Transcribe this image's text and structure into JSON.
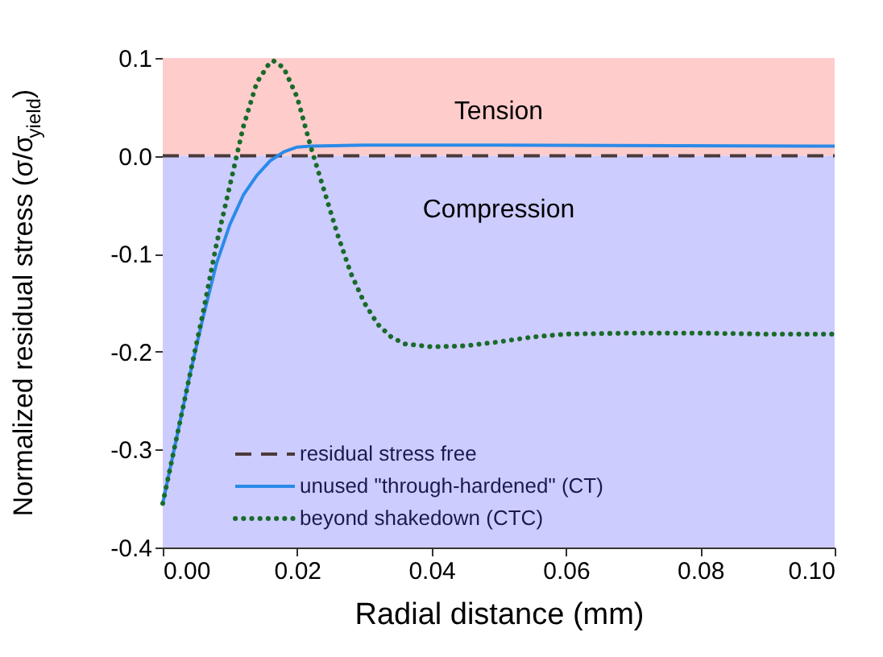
{
  "chart_data": {
    "type": "line",
    "xlabel": "Radial distance (mm)",
    "ylabel": "Normalized residual stress (σ/σ$_{yield}$)",
    "xlim": [
      0,
      0.1
    ],
    "xticks": [
      {
        "value": 0,
        "label": "0.00"
      },
      0.02,
      0.04,
      0.06,
      0.08,
      {
        "value": 0.1,
        "label": "0.10"
      }
    ],
    "ylim": [
      -0.4,
      0.1
    ],
    "yticks": [
      {
        "value": -0.4,
        "label": "-0.4"
      },
      {
        "value": -0.3,
        "label": "-0.3"
      },
      {
        "value": -0.2,
        "label": "-0.2"
      },
      {
        "value": -0.1,
        "label": "-0.1"
      },
      {
        "value": 0,
        "label": "0.0"
      },
      {
        "value": 0.1,
        "label": "0.1"
      }
    ],
    "grid": false,
    "legend": "bottom left",
    "marker": "none",
    "bands": [
      {
        "axis": "y",
        "from": 0,
        "to": 0.1,
        "label": "Tension",
        "color": "#ffcccc"
      },
      {
        "axis": "y",
        "from": -0.4,
        "to": 0,
        "label": "Compression",
        "color": "#ccccff"
      }
    ],
    "series": [
      {
        "name": "residual stress free",
        "color": "#4a3a3a",
        "line_style": "dashed",
        "x": [
          0,
          0.1
        ],
        "values": [
          0,
          0
        ]
      },
      {
        "name": "unused \"through-hardened\" (CT)",
        "color": "#2a8ae8",
        "line_style": "solid",
        "x": [
          0,
          0.002,
          0.004,
          0.006,
          0.008,
          0.01,
          0.012,
          0.014,
          0.016,
          0.018,
          0.02,
          0.022,
          0.03,
          0.05,
          0.1
        ],
        "values": [
          -0.355,
          -0.29,
          -0.225,
          -0.165,
          -0.11,
          -0.07,
          -0.04,
          -0.02,
          -0.005,
          0.004,
          0.009,
          0.01,
          0.011,
          0.011,
          0.01
        ]
      },
      {
        "name": "beyond shakedown (CTC)",
        "color": "#1a6b2a",
        "line_style": "dotted",
        "x": [
          0,
          0.002,
          0.004,
          0.006,
          0.008,
          0.01,
          0.012,
          0.014,
          0.016,
          0.0165,
          0.018,
          0.02,
          0.022,
          0.024,
          0.026,
          0.028,
          0.03,
          0.032,
          0.034,
          0.036,
          0.04,
          0.045,
          0.05,
          0.055,
          0.06,
          0.07,
          0.08,
          0.09,
          0.1
        ],
        "values": [
          -0.355,
          -0.29,
          -0.225,
          -0.16,
          -0.09,
          -0.03,
          0.03,
          0.075,
          0.096,
          0.097,
          0.09,
          0.06,
          0.01,
          -0.035,
          -0.08,
          -0.12,
          -0.15,
          -0.172,
          -0.185,
          -0.192,
          -0.195,
          -0.194,
          -0.19,
          -0.185,
          -0.182,
          -0.181,
          -0.181,
          -0.182,
          -0.182
        ]
      }
    ]
  }
}
